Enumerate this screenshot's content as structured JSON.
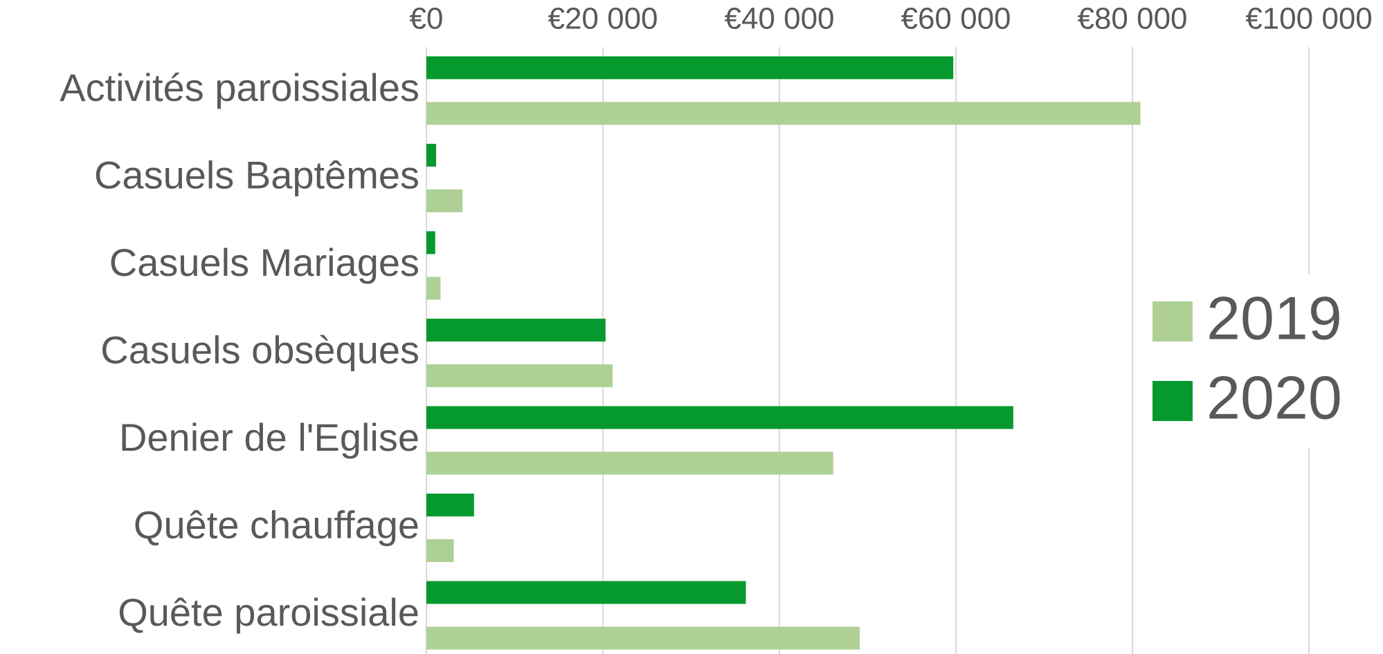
{
  "chart_data": {
    "type": "bar",
    "orientation": "horizontal",
    "categories": [
      "Activités paroissiales",
      "Casuels Baptêmes",
      "Casuels Mariages",
      "Casuels obsèques",
      "Denier de l'Eglise",
      "Quête chauffage",
      "Quête paroissiale"
    ],
    "series": [
      {
        "name": "2019",
        "color": "#aed095",
        "values": [
          80900,
          4100,
          1600,
          21100,
          46100,
          3100,
          49100
        ]
      },
      {
        "name": "2020",
        "color": "#069a2e",
        "values": [
          59700,
          1100,
          1000,
          20300,
          66500,
          5400,
          36200
        ]
      }
    ],
    "xlim": [
      0,
      100000
    ],
    "xticks": [
      {
        "value": 0,
        "label": "€0"
      },
      {
        "value": 20000,
        "label": "€20 000"
      },
      {
        "value": 40000,
        "label": "€40 000"
      },
      {
        "value": 60000,
        "label": "€60 000"
      },
      {
        "value": 80000,
        "label": "€80 000"
      },
      {
        "value": 100000,
        "label": "€100 000"
      }
    ],
    "grid": true,
    "legend": "right"
  }
}
